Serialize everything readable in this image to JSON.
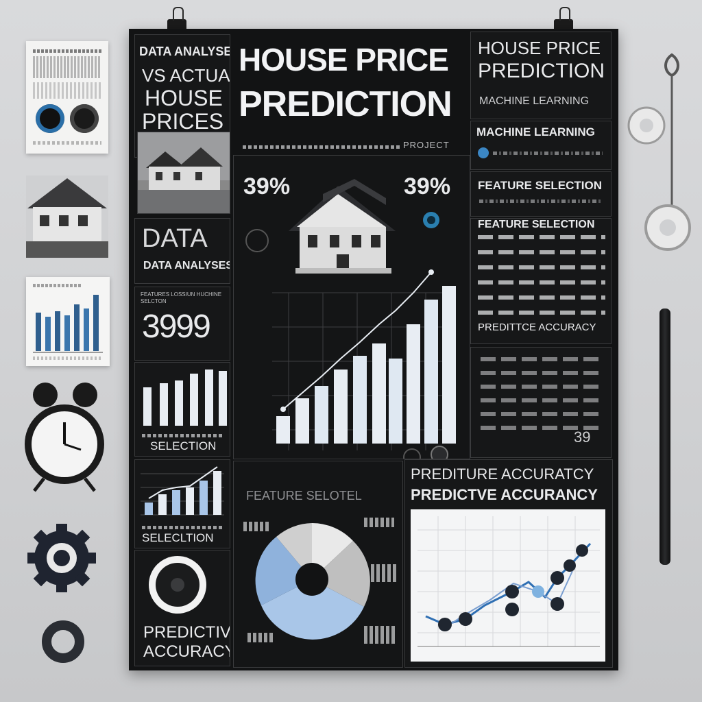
{
  "poster": {
    "title_line1": "HOUSE PRICE",
    "title_line2": "PREDICTION",
    "subtitle": "PROJECT",
    "left_col": {
      "heading1": "DATA ANALYSES",
      "heading2": "VS ACTUAL",
      "heading3": "HOUSE",
      "heading4": "PRICES",
      "data_label": "DATA",
      "data_analysis": "DATA ANALYSES",
      "small_heading": "FEATURES LOSSIUN HUCHINE SELCTON",
      "big_number": "3999",
      "selection1": "SELECTION",
      "selection2": "SELECLTION",
      "predictive": "PREDICTIVE",
      "accuracy": "ACCURACY"
    },
    "center": {
      "stat_left": "39%",
      "stat_right": "39%",
      "feature_label": "FEATURE SELOTEL"
    },
    "right_col": {
      "title1": "HOUSE PRICE",
      "title2": "PREDICTION",
      "ml1": "MACHINE LEARNING",
      "ml2": "MACHINE LEARNING",
      "feature1": "FEATURE SELECTION",
      "feature2": "FEATURE SELECTION",
      "accuracy": "PREDITTCE ACCURACY",
      "stat": "39"
    },
    "bottom_right": {
      "heading1": "PREDITURE ACCURATCY",
      "heading2": "PREDICTVE ACCURANCY"
    }
  },
  "colors": {
    "poster_bg": "#121314",
    "accent_blue": "#a9c6e8",
    "bar_white": "#e8edf3"
  }
}
